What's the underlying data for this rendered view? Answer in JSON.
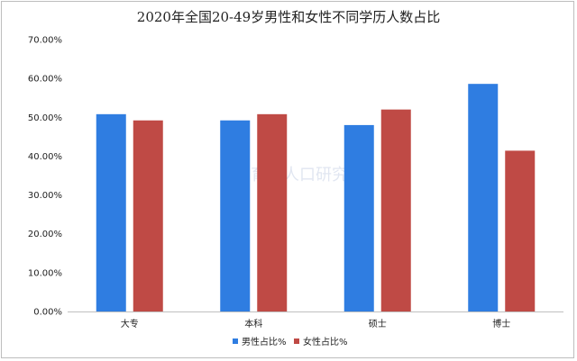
{
  "chart_data": {
    "type": "bar",
    "title": "2020年全国20-49岁男性和女性不同学历人数占比",
    "categories": [
      "大专",
      "本科",
      "硕士",
      "博士"
    ],
    "series": [
      {
        "name": "男性占比%",
        "values": [
          50.8,
          49.2,
          48.0,
          58.6
        ],
        "color": "#2f7de1"
      },
      {
        "name": "女性占比%",
        "values": [
          49.2,
          50.8,
          52.0,
          41.4
        ],
        "color": "#bf4a45"
      }
    ],
    "ylim": [
      0,
      70
    ],
    "yticks": [
      "0.00%",
      "10.00%",
      "20.00%",
      "30.00%",
      "40.00%",
      "50.00%",
      "60.00%",
      "70.00%"
    ],
    "grid": false,
    "legend": "bottom-center",
    "watermark": "育娲人口研究"
  }
}
